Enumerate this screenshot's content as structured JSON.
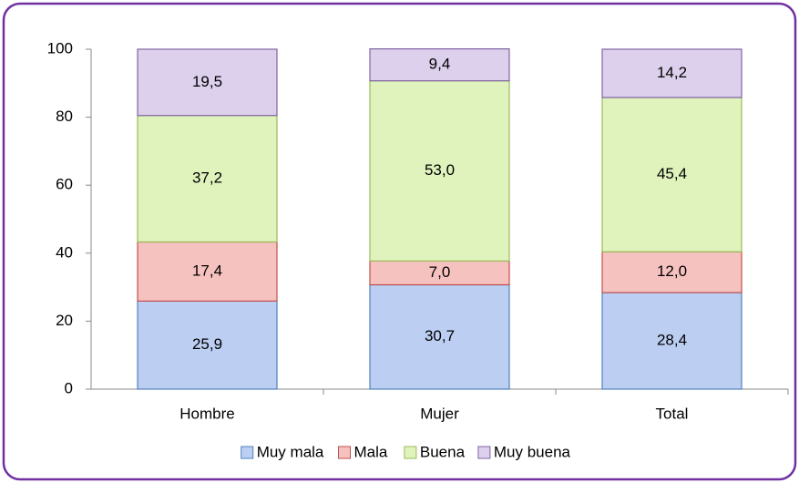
{
  "chart_data": {
    "type": "stacked_bar",
    "categories": [
      "Hombre",
      "Mujer",
      "Total"
    ],
    "series": [
      {
        "name": "Muy mala",
        "color": "#bccff3",
        "edgecolor": "#4f81bd",
        "values": [
          25.9,
          30.7,
          28.4
        ],
        "value_labels": [
          "25,9",
          "30,7",
          "28,4"
        ]
      },
      {
        "name": "Mala",
        "color": "#f6c2c0",
        "edgecolor": "#c0504d",
        "values": [
          17.4,
          7.0,
          12.0
        ],
        "value_labels": [
          "17,4",
          "7,0",
          "12,0"
        ]
      },
      {
        "name": "Buena",
        "color": "#e0f3bd",
        "edgecolor": "#9bbb59",
        "values": [
          37.2,
          53.0,
          45.4
        ],
        "value_labels": [
          "37,2",
          "53,0",
          "45,4"
        ]
      },
      {
        "name": "Muy buena",
        "color": "#ddd0ec",
        "edgecolor": "#8064a2",
        "values": [
          19.5,
          9.4,
          14.2
        ],
        "value_labels": [
          "19,5",
          "9,4",
          "14,2"
        ]
      }
    ],
    "ylim": [
      0,
      100
    ],
    "yticks": [
      0,
      20,
      40,
      60,
      80,
      100
    ],
    "legend": "bottom"
  }
}
